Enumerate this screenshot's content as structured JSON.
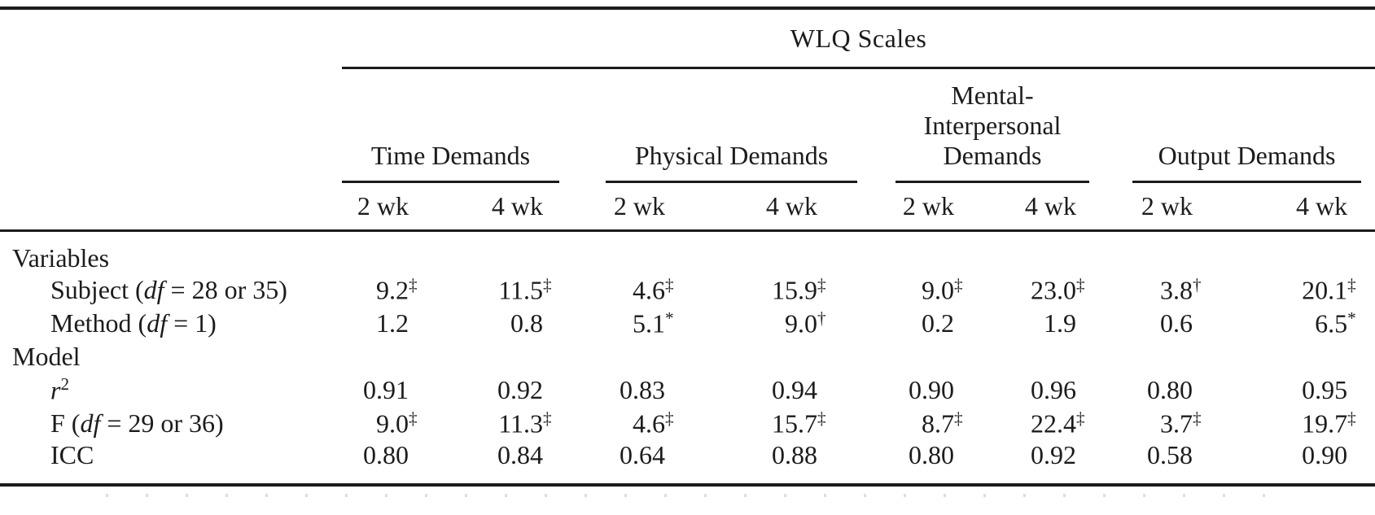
{
  "page": {
    "background": "#ffffff",
    "text_color": "#1c1c1c",
    "rule_color": "#1b1b1b"
  },
  "table": {
    "spanner_label": "WLQ Scales",
    "column_groups": [
      {
        "label": "Time Demands",
        "sub": [
          "2 wk",
          "4 wk"
        ]
      },
      {
        "label": "Physical Demands",
        "sub": [
          "2 wk",
          "4 wk"
        ]
      },
      {
        "label": "Mental-\nInterpersonal\nDemands",
        "sub": [
          "2 wk",
          "4 wk"
        ]
      },
      {
        "label": "Output Demands",
        "sub": [
          "2 wk",
          "4 wk"
        ]
      }
    ],
    "rows": [
      {
        "id": "variables",
        "kind": "section",
        "indent": false,
        "label": {
          "pre": "Variables",
          "italic": "",
          "sup": "",
          "post": ""
        },
        "cells": []
      },
      {
        "id": "subject",
        "kind": "data",
        "indent": true,
        "label": {
          "pre": "Subject (",
          "italic": "df",
          "sup": "",
          "post": " = 28 or 35)"
        },
        "cells": [
          {
            "v": "9.2",
            "m": "‡"
          },
          {
            "v": "11.5",
            "m": "‡"
          },
          {
            "v": "4.6",
            "m": "‡"
          },
          {
            "v": "15.9",
            "m": "‡"
          },
          {
            "v": "9.0",
            "m": "‡"
          },
          {
            "v": "23.0",
            "m": "‡"
          },
          {
            "v": "3.8",
            "m": "†"
          },
          {
            "v": "20.1",
            "m": "‡"
          }
        ]
      },
      {
        "id": "method",
        "kind": "data",
        "indent": true,
        "label": {
          "pre": "Method (",
          "italic": "df",
          "sup": "",
          "post": " = 1)"
        },
        "cells": [
          {
            "v": "1.2",
            "m": ""
          },
          {
            "v": "0.8",
            "m": ""
          },
          {
            "v": "5.1",
            "m": "*"
          },
          {
            "v": "9.0",
            "m": "†"
          },
          {
            "v": "0.2",
            "m": ""
          },
          {
            "v": "1.9",
            "m": ""
          },
          {
            "v": "0.6",
            "m": ""
          },
          {
            "v": "6.5",
            "m": "*"
          }
        ]
      },
      {
        "id": "model",
        "kind": "section",
        "indent": false,
        "label": {
          "pre": "Model",
          "italic": "",
          "sup": "",
          "post": ""
        },
        "cells": []
      },
      {
        "id": "r-squared",
        "kind": "data",
        "indent": true,
        "label": {
          "pre": "",
          "italic": "r",
          "sup": "2",
          "post": ""
        },
        "cells": [
          {
            "v": "0.91",
            "m": ""
          },
          {
            "v": "0.92",
            "m": ""
          },
          {
            "v": "0.83",
            "m": ""
          },
          {
            "v": "0.94",
            "m": ""
          },
          {
            "v": "0.90",
            "m": ""
          },
          {
            "v": "0.96",
            "m": ""
          },
          {
            "v": "0.80",
            "m": ""
          },
          {
            "v": "0.95",
            "m": ""
          }
        ]
      },
      {
        "id": "f-stat",
        "kind": "data",
        "indent": true,
        "label": {
          "pre": "F (",
          "italic": "df",
          "sup": "",
          "post": " = 29 or 36)"
        },
        "cells": [
          {
            "v": "9.0",
            "m": "‡"
          },
          {
            "v": "11.3",
            "m": "‡"
          },
          {
            "v": "4.6",
            "m": "‡"
          },
          {
            "v": "15.7",
            "m": "‡"
          },
          {
            "v": "8.7",
            "m": "‡"
          },
          {
            "v": "22.4",
            "m": "‡"
          },
          {
            "v": "3.7",
            "m": "‡"
          },
          {
            "v": "19.7",
            "m": "‡"
          }
        ]
      },
      {
        "id": "icc",
        "kind": "data",
        "indent": true,
        "label": {
          "pre": "ICC",
          "italic": "",
          "sup": "",
          "post": ""
        },
        "cells": [
          {
            "v": "0.80",
            "m": ""
          },
          {
            "v": "0.84",
            "m": ""
          },
          {
            "v": "0.64",
            "m": ""
          },
          {
            "v": "0.88",
            "m": ""
          },
          {
            "v": "0.80",
            "m": ""
          },
          {
            "v": "0.92",
            "m": ""
          },
          {
            "v": "0.58",
            "m": ""
          },
          {
            "v": "0.90",
            "m": ""
          }
        ]
      }
    ]
  }
}
